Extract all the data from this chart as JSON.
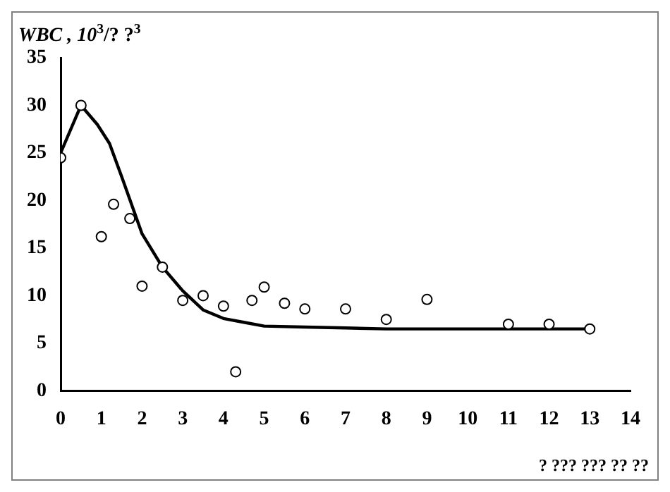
{
  "chart_data": {
    "type": "scatter",
    "ylabel": "WBC , 10$^{3}$/? ?$^{3}$",
    "xlabel": "? ??? ??? ?? ??",
    "xlim": [
      0,
      14
    ],
    "xticks": [
      0,
      1,
      2,
      3,
      4,
      5,
      6,
      7,
      8,
      9,
      10,
      11,
      12,
      13,
      14
    ],
    "ylim": [
      0,
      35
    ],
    "yticks": [
      0,
      5,
      10,
      15,
      20,
      25,
      30,
      35
    ],
    "grid": false,
    "legend": false,
    "series": [
      {
        "type": "scatter",
        "color": "#000000",
        "marker": "circle",
        "x": [
          0,
          0.5,
          1,
          1.3,
          1.7,
          2,
          2.5,
          3,
          3.5,
          4,
          4.3,
          4.7,
          5,
          5.5,
          6,
          7,
          8,
          9,
          11,
          12,
          13
        ],
        "values": [
          24.5,
          30,
          16.2,
          19.6,
          18.1,
          11,
          13,
          9.5,
          10,
          8.9,
          2,
          9.5,
          10.9,
          9.2,
          8.6,
          8.6,
          7.5,
          9.6,
          7,
          7,
          6.5
        ]
      },
      {
        "type": "line",
        "color": "#000000",
        "marker": "none",
        "line_style": "solid",
        "x": [
          0,
          0.5,
          0.9,
          1.2,
          1.5,
          2,
          2.5,
          3,
          3.5,
          4,
          4.5,
          5,
          6,
          7,
          8,
          13
        ],
        "values": [
          25,
          30,
          28,
          26,
          22.5,
          16.5,
          13,
          10.5,
          8.5,
          7.6,
          7.2,
          6.8,
          6.7,
          6.6,
          6.5,
          6.5
        ]
      }
    ]
  }
}
